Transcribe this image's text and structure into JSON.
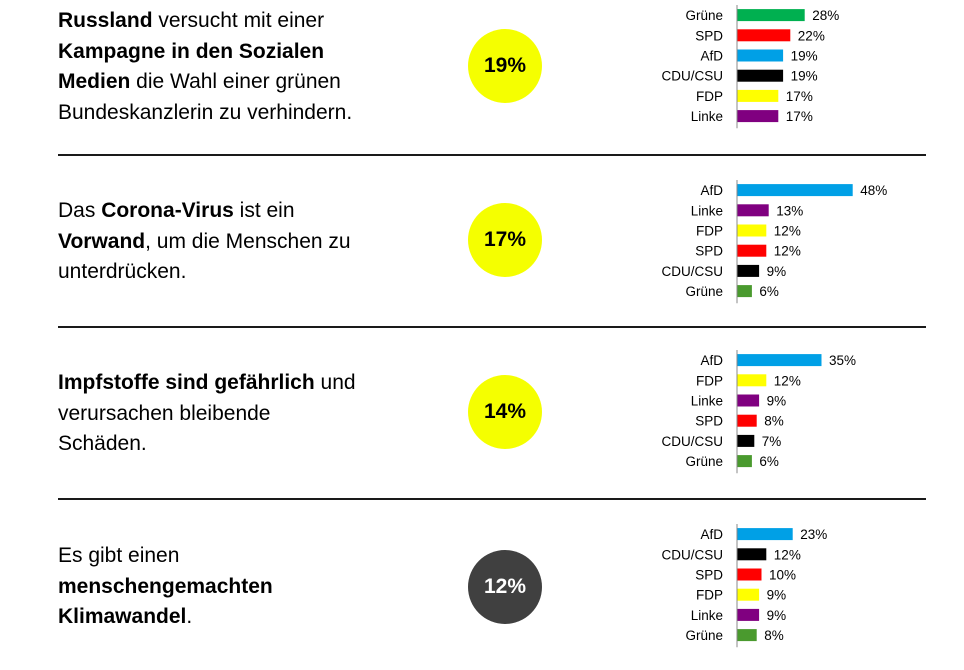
{
  "colors": {
    "circle_yellow": "#f5ff00",
    "circle_dark": "#404040",
    "parties": {
      "Grüne_bright": "#00b050",
      "Grüne": "#4a9a2e",
      "SPD": "#ff0000",
      "AfD": "#00a0e6",
      "CDU/CSU": "#000000",
      "FDP": "#ffff00",
      "Linke": "#800080"
    }
  },
  "sections": [
    {
      "statement": [
        {
          "text": "Russland",
          "bold": true
        },
        {
          "text": " versucht mit einer ",
          "bold": false
        },
        {
          "text": "Kampagne in den Sozialen Medien",
          "bold": true
        },
        {
          "text": " die Wahl einer grünen Bundeskanzlerin zu verhindern.",
          "bold": false
        }
      ],
      "lines": [
        [
          {
            "text": "Russland",
            "bold": true
          },
          {
            "text": " versucht mit einer",
            "bold": false
          }
        ],
        [
          {
            "text": "Kampagne in den Sozialen",
            "bold": true
          }
        ],
        [
          {
            "text": "Medien",
            "bold": true
          },
          {
            "text": " die Wahl einer grünen",
            "bold": false
          }
        ],
        [
          {
            "text": "Bundeskanzlerin zu verhindern.",
            "bold": false
          }
        ]
      ],
      "overall": "19%",
      "circle_style": "yellow"
    },
    {
      "lines": [
        [
          {
            "text": "Das ",
            "bold": false
          },
          {
            "text": "Corona-Virus",
            "bold": true
          },
          {
            "text": " ist ein",
            "bold": false
          }
        ],
        [
          {
            "text": "Vorwand",
            "bold": true
          },
          {
            "text": ", um die Menschen zu",
            "bold": false
          }
        ],
        [
          {
            "text": "unterdrücken.",
            "bold": false
          }
        ]
      ],
      "overall": "17%",
      "circle_style": "yellow"
    },
    {
      "lines": [
        [
          {
            "text": "Impfstoffe sind gefährlich",
            "bold": true
          },
          {
            "text": " und",
            "bold": false
          }
        ],
        [
          {
            "text": "verursachen bleibende",
            "bold": false
          }
        ],
        [
          {
            "text": "Schäden.",
            "bold": false
          }
        ]
      ],
      "overall": "14%",
      "circle_style": "yellow"
    },
    {
      "lines": [
        [
          {
            "text": "Es gibt einen",
            "bold": false
          }
        ],
        [
          {
            "text": "menschengemachten",
            "bold": true
          }
        ],
        [
          {
            "text": "Klimawandel",
            "bold": true
          },
          {
            "text": ".",
            "bold": false
          }
        ]
      ],
      "overall": "12%",
      "circle_style": "dark"
    }
  ],
  "chart_data": [
    {
      "type": "bar",
      "orientation": "horizontal",
      "title": "Russland versucht mit einer Kampagne in den Sozialen Medien die Wahl einer grünen Bundeskanzlerin zu verhindern.",
      "categories": [
        "Grüne",
        "SPD",
        "AfD",
        "CDU/CSU",
        "FDP",
        "Linke"
      ],
      "values": [
        28,
        22,
        19,
        19,
        17,
        17
      ],
      "labels": [
        "28%",
        "22%",
        "19%",
        "19%",
        "17%",
        "17%"
      ],
      "colors": [
        "#00b050",
        "#ff0000",
        "#00a0e6",
        "#000000",
        "#ffff00",
        "#800080"
      ],
      "unit": "%",
      "xlim": [
        0,
        50
      ]
    },
    {
      "type": "bar",
      "orientation": "horizontal",
      "title": "Das Corona-Virus ist ein Vorwand, um die Menschen zu unterdrücken.",
      "categories": [
        "AfD",
        "Linke",
        "FDP",
        "SPD",
        "CDU/CSU",
        "Grüne"
      ],
      "values": [
        48,
        13,
        12,
        12,
        9,
        6
      ],
      "labels": [
        "48%",
        "13%",
        "12%",
        "12%",
        "9%",
        "6%"
      ],
      "colors": [
        "#00a0e6",
        "#800080",
        "#ffff00",
        "#ff0000",
        "#000000",
        "#4a9a2e"
      ],
      "unit": "%",
      "xlim": [
        0,
        50
      ]
    },
    {
      "type": "bar",
      "orientation": "horizontal",
      "title": "Impfstoffe sind gefährlich und verursachen bleibende Schäden.",
      "categories": [
        "AfD",
        "FDP",
        "Linke",
        "SPD",
        "CDU/CSU",
        "Grüne"
      ],
      "values": [
        35,
        12,
        9,
        8,
        7,
        6
      ],
      "labels": [
        "35%",
        "12%",
        "9%",
        "8%",
        "7%",
        "6%"
      ],
      "colors": [
        "#00a0e6",
        "#ffff00",
        "#800080",
        "#ff0000",
        "#000000",
        "#4a9a2e"
      ],
      "unit": "%",
      "xlim": [
        0,
        50
      ]
    },
    {
      "type": "bar",
      "orientation": "horizontal",
      "title": "Es gibt einen menschengemachten Klimawandel.",
      "categories": [
        "AfD",
        "CDU/CSU",
        "SPD",
        "FDP",
        "Linke",
        "Grüne"
      ],
      "values": [
        23,
        12,
        10,
        9,
        9,
        8
      ],
      "labels": [
        "23%",
        "12%",
        "10%",
        "9%",
        "9%",
        "8%"
      ],
      "colors": [
        "#00a0e6",
        "#000000",
        "#ff0000",
        "#ffff00",
        "#800080",
        "#4a9a2e"
      ],
      "unit": "%",
      "xlim": [
        0,
        50
      ]
    }
  ]
}
